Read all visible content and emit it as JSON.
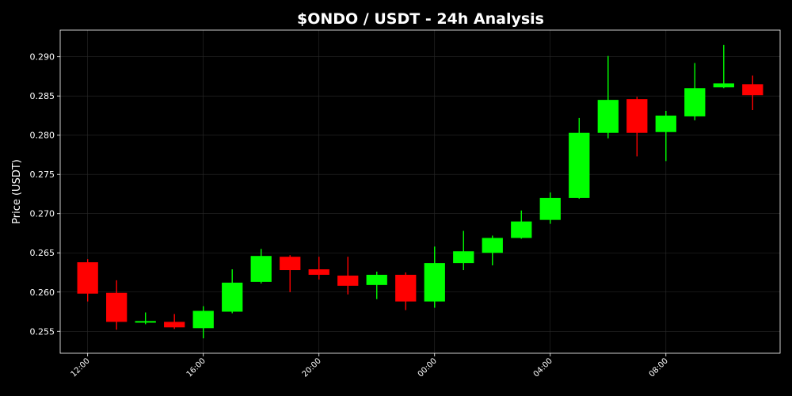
{
  "chart_data": {
    "type": "candlestick",
    "title": "$ONDO / USDT - 24h Analysis",
    "xlabel": "",
    "ylabel": "Price (USDT)",
    "ylim": [
      0.2522,
      0.2934
    ],
    "yticks": [
      "0.255",
      "0.260",
      "0.265",
      "0.270",
      "0.275",
      "0.280",
      "0.285",
      "0.290"
    ],
    "xticks": [
      {
        "label": "12:00",
        "hour": 0
      },
      {
        "label": "16:00",
        "hour": 4
      },
      {
        "label": "20:00",
        "hour": 8
      },
      {
        "label": "00:00",
        "hour": 12
      },
      {
        "label": "04:00",
        "hour": 16
      },
      {
        "label": "08:00",
        "hour": 20
      }
    ],
    "grid": true,
    "colors": {
      "background": "#000000",
      "up": "#00ff00",
      "down": "#ff0000",
      "text": "#ffffff",
      "grid": "#2a2a2a",
      "axis": "#ffffff"
    },
    "candles": [
      {
        "time": "12:00",
        "open": 0.2638,
        "high": 0.2642,
        "low": 0.2588,
        "close": 0.2598
      },
      {
        "time": "13:00",
        "open": 0.2599,
        "high": 0.2615,
        "low": 0.2552,
        "close": 0.2562
      },
      {
        "time": "14:00",
        "open": 0.2561,
        "high": 0.2574,
        "low": 0.2559,
        "close": 0.2563
      },
      {
        "time": "15:00",
        "open": 0.2562,
        "high": 0.2572,
        "low": 0.2553,
        "close": 0.2555
      },
      {
        "time": "16:00",
        "open": 0.2554,
        "high": 0.2582,
        "low": 0.2541,
        "close": 0.2576
      },
      {
        "time": "17:00",
        "open": 0.2575,
        "high": 0.2629,
        "low": 0.2573,
        "close": 0.2612
      },
      {
        "time": "18:00",
        "open": 0.2613,
        "high": 0.2655,
        "low": 0.2611,
        "close": 0.2646
      },
      {
        "time": "19:00",
        "open": 0.2645,
        "high": 0.2647,
        "low": 0.26,
        "close": 0.2628
      },
      {
        "time": "20:00",
        "open": 0.2629,
        "high": 0.2645,
        "low": 0.2616,
        "close": 0.2622
      },
      {
        "time": "21:00",
        "open": 0.2621,
        "high": 0.2645,
        "low": 0.2597,
        "close": 0.2608
      },
      {
        "time": "22:00",
        "open": 0.2609,
        "high": 0.2626,
        "low": 0.2591,
        "close": 0.2622
      },
      {
        "time": "23:00",
        "open": 0.2622,
        "high": 0.2625,
        "low": 0.2577,
        "close": 0.2588
      },
      {
        "time": "00:00",
        "open": 0.2588,
        "high": 0.2658,
        "low": 0.258,
        "close": 0.2637
      },
      {
        "time": "01:00",
        "open": 0.2637,
        "high": 0.2678,
        "low": 0.2628,
        "close": 0.2652
      },
      {
        "time": "02:00",
        "open": 0.265,
        "high": 0.2672,
        "low": 0.2634,
        "close": 0.2669
      },
      {
        "time": "03:00",
        "open": 0.2669,
        "high": 0.2704,
        "low": 0.2668,
        "close": 0.269
      },
      {
        "time": "04:00",
        "open": 0.2692,
        "high": 0.2727,
        "low": 0.2687,
        "close": 0.272
      },
      {
        "time": "05:00",
        "open": 0.272,
        "high": 0.2822,
        "low": 0.2719,
        "close": 0.2803
      },
      {
        "time": "06:00",
        "open": 0.2803,
        "high": 0.2901,
        "low": 0.2796,
        "close": 0.2845
      },
      {
        "time": "07:00",
        "open": 0.2846,
        "high": 0.2849,
        "low": 0.2773,
        "close": 0.2803
      },
      {
        "time": "08:00",
        "open": 0.2804,
        "high": 0.2831,
        "low": 0.2767,
        "close": 0.2825
      },
      {
        "time": "09:00",
        "open": 0.2824,
        "high": 0.2892,
        "low": 0.2819,
        "close": 0.286
      },
      {
        "time": "10:00",
        "open": 0.2861,
        "high": 0.2915,
        "low": 0.286,
        "close": 0.2866
      },
      {
        "time": "11:00",
        "open": 0.2865,
        "high": 0.2876,
        "low": 0.2832,
        "close": 0.2851
      }
    ]
  }
}
